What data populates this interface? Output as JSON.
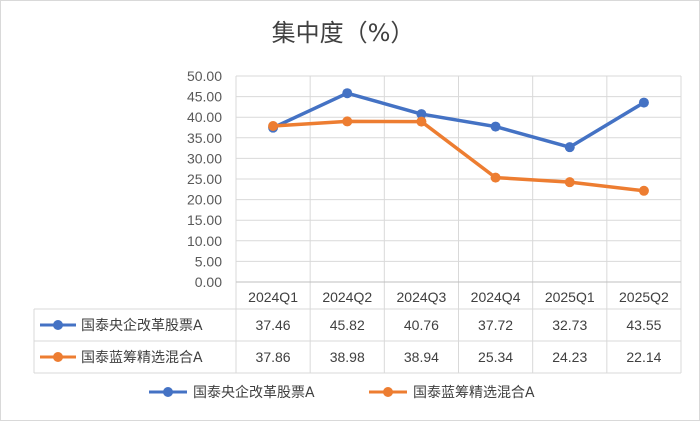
{
  "colors": {
    "series1": "#4472C4",
    "series2": "#ED7D31",
    "grid": "#D9D9D9",
    "axis": "#BFBFBF"
  },
  "chart_data": {
    "type": "line",
    "title": "集中度（%）",
    "categories": [
      "2024Q1",
      "2024Q2",
      "2024Q3",
      "2024Q4",
      "2025Q1",
      "2025Q2"
    ],
    "y_ticks": [
      "0.00",
      "5.00",
      "10.00",
      "15.00",
      "20.00",
      "25.00",
      "30.00",
      "35.00",
      "40.00",
      "45.00",
      "50.00"
    ],
    "ylim": [
      0,
      50
    ],
    "grid": true,
    "legend_position": "bottom",
    "data_table": true,
    "series": [
      {
        "name": "国泰央企改革股票A",
        "values": [
          37.46,
          45.82,
          40.76,
          37.72,
          32.73,
          43.55
        ],
        "labels": [
          "37.46",
          "45.82",
          "40.76",
          "37.72",
          "32.73",
          "43.55"
        ]
      },
      {
        "name": "国泰蓝筹精选混合A",
        "values": [
          37.86,
          38.98,
          38.94,
          25.34,
          24.23,
          22.14
        ],
        "labels": [
          "37.86",
          "38.98",
          "38.94",
          "25.34",
          "24.23",
          "22.14"
        ]
      }
    ]
  }
}
